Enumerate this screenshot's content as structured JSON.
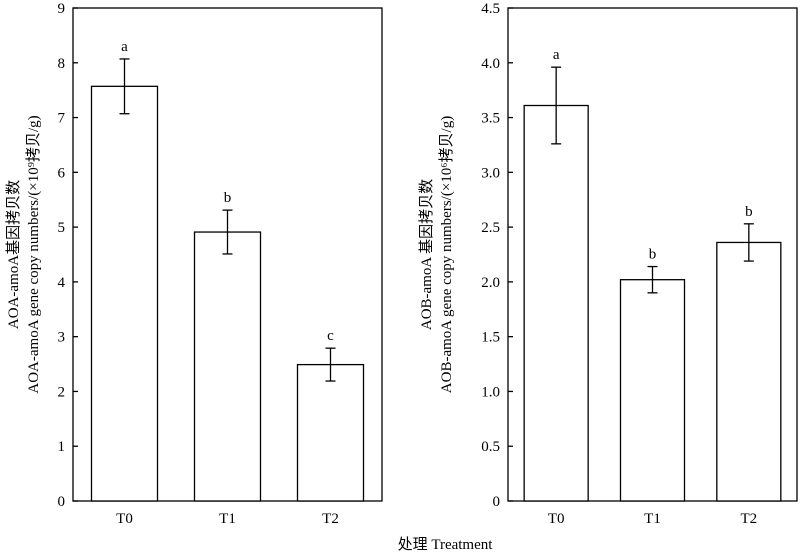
{
  "chart_data": [
    {
      "type": "bar",
      "categories": [
        "T0",
        "T1",
        "T2"
      ],
      "values": [
        7.57,
        4.91,
        2.49
      ],
      "errors": [
        0.5,
        0.4,
        0.3
      ],
      "significance": [
        "a",
        "b",
        "c"
      ],
      "ylabel_line1": "AOA-amoA基因拷贝数",
      "ylabel_line2": "AOA-amoA gene copy numbers/(×10⁹拷贝/g)",
      "ylim": [
        0,
        9
      ],
      "yticks": [
        0,
        1,
        2,
        3,
        4,
        5,
        6,
        7,
        8,
        9
      ],
      "ytick_labels": [
        "0",
        "1",
        "2",
        "3",
        "4",
        "5",
        "6",
        "7",
        "8",
        "9"
      ]
    },
    {
      "type": "bar",
      "categories": [
        "T0",
        "T1",
        "T2"
      ],
      "values": [
        3.61,
        2.02,
        2.36
      ],
      "errors": [
        0.35,
        0.12,
        0.17
      ],
      "significance": [
        "a",
        "b",
        "b"
      ],
      "ylabel_line1": "AOB-amoA 基因拷贝数",
      "ylabel_line2": "AOB-amoA  gene copy numbers/(×10⁶拷贝/g)",
      "ylim": [
        0,
        4.5
      ],
      "yticks": [
        0,
        0.5,
        1,
        1.5,
        2,
        2.5,
        3,
        3.5,
        4,
        4.5
      ],
      "ytick_labels": [
        "0",
        "0.5",
        "1.0",
        "1.5",
        "2.0",
        "2.5",
        "3.0",
        "3.5",
        "4.0",
        "4.5"
      ]
    }
  ],
  "shared_xlabel": "处理 Treatment"
}
